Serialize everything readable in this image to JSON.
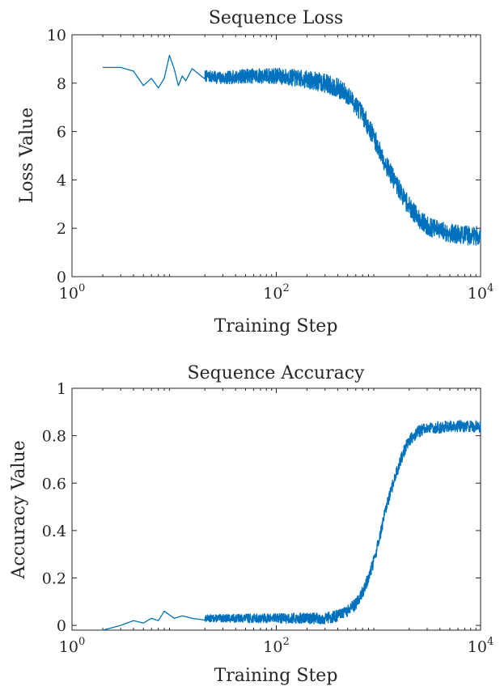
{
  "chart_data": [
    {
      "type": "line",
      "title": "Sequence Loss",
      "xlabel": "Training Step",
      "ylabel": "Loss Value",
      "xscale": "log",
      "xlim": [
        1,
        10000
      ],
      "ylim": [
        0,
        10
      ],
      "xticks": [
        1,
        100,
        10000
      ],
      "xtick_labels": [
        {
          "base": "10",
          "exp": "0"
        },
        {
          "base": "10",
          "exp": "2"
        },
        {
          "base": "10",
          "exp": "4"
        }
      ],
      "yticks": [
        0,
        2,
        4,
        6,
        8,
        10
      ],
      "ytick_labels": [
        "0",
        "2",
        "4",
        "6",
        "8",
        "10"
      ],
      "grid": false,
      "color": "#0072BD",
      "noise": 0.4,
      "seed": 7,
      "x": [
        2,
        3,
        4,
        5,
        6,
        7,
        8,
        9,
        10,
        11,
        12,
        13,
        15,
        20,
        30,
        50,
        100,
        200,
        300,
        400,
        500,
        600,
        700,
        800,
        900,
        1000,
        1200,
        1500,
        2000,
        2500,
        3000,
        4000,
        5000,
        6000,
        8000,
        10000
      ],
      "y": [
        8.65,
        8.65,
        8.5,
        7.9,
        8.2,
        7.8,
        8.2,
        9.15,
        8.6,
        7.9,
        8.3,
        8.1,
        8.6,
        8.3,
        8.2,
        8.3,
        8.3,
        8.15,
        8.0,
        7.8,
        7.5,
        7.1,
        6.7,
        6.2,
        5.8,
        5.3,
        4.6,
        3.8,
        2.9,
        2.4,
        2.1,
        1.9,
        1.8,
        1.75,
        1.7,
        1.7
      ]
    },
    {
      "type": "line",
      "title": "Sequence Accuracy",
      "xlabel": "Training Step",
      "ylabel": "Accuracy Value",
      "xscale": "log",
      "xlim": [
        1,
        10000
      ],
      "ylim": [
        -0.02,
        1
      ],
      "xticks": [
        1,
        100,
        10000
      ],
      "xtick_labels": [
        {
          "base": "10",
          "exp": "0"
        },
        {
          "base": "10",
          "exp": "2"
        },
        {
          "base": "10",
          "exp": "4"
        }
      ],
      "yticks": [
        0,
        0.2,
        0.4,
        0.6,
        0.8,
        1
      ],
      "ytick_labels": [
        "0",
        "0.2",
        "0.4",
        "0.6",
        "0.8",
        "1"
      ],
      "grid": false,
      "color": "#0072BD",
      "noise": 0.025,
      "seed": 13,
      "x": [
        2,
        3,
        4,
        5,
        6,
        7,
        8,
        10,
        12,
        15,
        20,
        30,
        50,
        100,
        200,
        300,
        400,
        500,
        600,
        700,
        800,
        900,
        1000,
        1100,
        1200,
        1400,
        1600,
        1800,
        2000,
        2500,
        3000,
        5000,
        10000
      ],
      "y": [
        -0.02,
        0.0,
        0.02,
        0.01,
        0.03,
        0.02,
        0.06,
        0.03,
        0.04,
        0.03,
        0.03,
        0.03,
        0.03,
        0.03,
        0.03,
        0.03,
        0.04,
        0.06,
        0.09,
        0.14,
        0.2,
        0.27,
        0.35,
        0.43,
        0.5,
        0.6,
        0.68,
        0.74,
        0.78,
        0.82,
        0.83,
        0.84,
        0.84
      ]
    }
  ]
}
